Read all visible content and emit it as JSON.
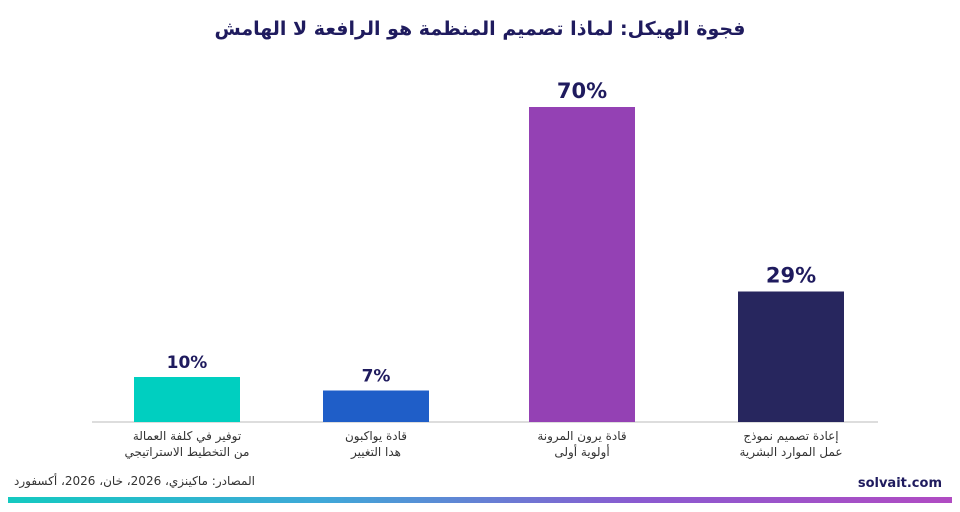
{
  "chart_data": {
    "type": "bar",
    "title": "فجوة الهيكل: لماذا تصميم المنظمة هو الرافعة لا الهامش",
    "xlabel": "",
    "ylabel": "",
    "ylim": [
      0,
      80
    ],
    "grid": false,
    "legend": "none",
    "categories": [
      [
        "توفير في كلفة العمالة",
        "من التخطيط الاستراتيجي"
      ],
      [
        "قادة يواكبون",
        "هدا التغيير"
      ],
      [
        "قادة يرون المرونة",
        "أولوية أولى"
      ],
      [
        "إعادة تصميم نموذج",
        "عمل الموارد البشرية"
      ]
    ],
    "values": [
      10,
      7,
      70,
      29
    ],
    "value_labels": [
      "10%",
      "7%",
      "70%",
      "29%"
    ],
    "colors": [
      "#00cfc0",
      "#1f5ec8",
      "#9441b4",
      "#27265e"
    ]
  },
  "footer": {
    "source": "المصادر: ماكينزي، 2026، خان، 2026، أكسفورد",
    "brand": "solvait.com"
  }
}
